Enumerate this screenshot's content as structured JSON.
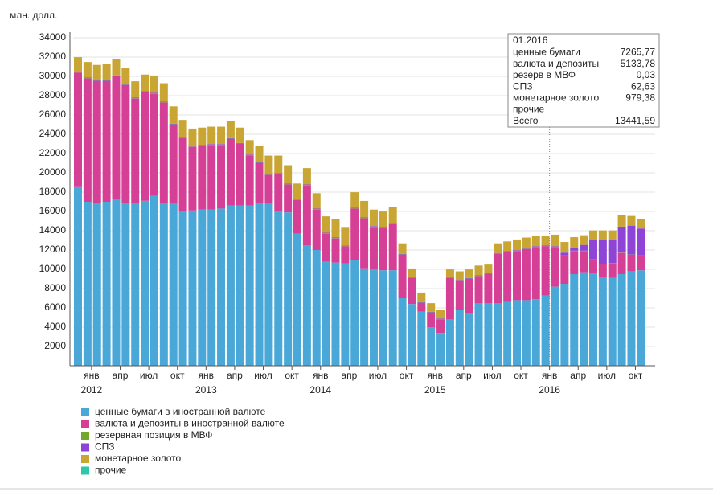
{
  "chart_data": {
    "type": "stacked-bar",
    "y_axis_label": "млн. долл.",
    "ylim": [
      0,
      34500
    ],
    "yticks": [
      2000,
      4000,
      6000,
      8000,
      10000,
      12000,
      14000,
      16000,
      18000,
      20000,
      22000,
      24000,
      26000,
      28000,
      30000,
      32000,
      34000
    ],
    "grid": true,
    "categories": [
      null,
      "янв",
      null,
      null,
      "апр",
      null,
      null,
      "июл",
      null,
      null,
      "окт",
      null,
      null,
      "янв",
      null,
      null,
      "апр",
      null,
      null,
      "июл",
      null,
      null,
      "окт",
      null,
      null,
      "янв",
      null,
      null,
      "апр",
      null,
      null,
      "июл",
      null,
      null,
      "окт",
      null,
      null,
      "янв",
      null,
      null,
      "апр",
      null,
      null,
      "июл",
      null,
      null,
      "окт",
      null,
      null,
      "янв",
      null,
      null,
      "апр",
      null,
      null,
      "июл",
      null,
      null,
      "окт",
      null
    ],
    "year_categories": [
      null,
      "2012",
      null,
      null,
      null,
      null,
      null,
      null,
      null,
      null,
      null,
      null,
      null,
      "2013",
      null,
      null,
      null,
      null,
      null,
      null,
      null,
      null,
      null,
      null,
      null,
      "2014",
      null,
      null,
      null,
      null,
      null,
      null,
      null,
      null,
      null,
      null,
      null,
      "2015",
      null,
      null,
      null,
      null,
      null,
      null,
      null,
      null,
      null,
      null,
      null,
      "2016",
      null,
      null,
      null,
      null,
      null,
      null,
      null,
      null,
      null,
      null
    ],
    "series": [
      {
        "name": "ценные бумаги в иностранной валюте",
        "color": "#4aa8d8",
        "values": [
          18600,
          17000,
          16900,
          17000,
          17300,
          16900,
          16900,
          17100,
          17600,
          16900,
          16800,
          16000,
          16100,
          16200,
          16200,
          16300,
          16600,
          16600,
          16600,
          16900,
          16800,
          16000,
          15900,
          13700,
          12500,
          12000,
          10800,
          10700,
          10600,
          11000,
          10100,
          10000,
          9900,
          9900,
          7000,
          6400,
          5600,
          4000,
          3400,
          4800,
          5800,
          5500,
          6500,
          6500,
          6500,
          6600,
          6800,
          6800,
          6900,
          7265.77,
          8200,
          8500,
          9500,
          9700,
          9600,
          9200,
          9100,
          9500,
          9800,
          9900
        ]
      },
      {
        "name": "валюта и депозиты в иностранной валюте",
        "color": "#d63f96",
        "values": [
          11800,
          12800,
          12600,
          12500,
          12700,
          12200,
          10800,
          11300,
          10600,
          10400,
          8200,
          7600,
          6600,
          6600,
          6700,
          6600,
          6900,
          6400,
          5200,
          4100,
          3000,
          3900,
          2900,
          3500,
          6200,
          4200,
          2900,
          2500,
          1800,
          5300,
          5200,
          4400,
          4400,
          4800,
          4500,
          2700,
          900,
          1500,
          1400,
          4300,
          3000,
          3500,
          2800,
          3000,
          5100,
          5200,
          5100,
          5300,
          5400,
          5133.78,
          4100,
          2900,
          2400,
          2200,
          1400,
          1300,
          1500,
          2200,
          1700,
          1500
        ]
      },
      {
        "name": "резервная позиция в МВФ",
        "color": "#74a82a",
        "values": [
          30,
          30,
          30,
          30,
          30,
          30,
          30,
          30,
          30,
          30,
          30,
          30,
          30,
          30,
          30,
          30,
          30,
          30,
          30,
          30,
          30,
          30,
          30,
          30,
          30,
          30,
          30,
          30,
          30,
          30,
          30,
          30,
          30,
          30,
          30,
          30,
          30,
          30,
          30,
          30,
          30,
          30,
          30,
          30,
          30,
          30,
          30,
          30,
          30,
          0.03,
          30,
          30,
          30,
          30,
          30,
          30,
          30,
          30,
          30,
          30
        ]
      },
      {
        "name": "СПЗ",
        "color": "#8e44d6",
        "values": [
          60,
          60,
          60,
          60,
          60,
          60,
          60,
          60,
          60,
          60,
          60,
          60,
          60,
          60,
          60,
          60,
          60,
          60,
          60,
          60,
          60,
          60,
          60,
          60,
          60,
          60,
          60,
          60,
          60,
          60,
          60,
          60,
          60,
          60,
          60,
          60,
          60,
          60,
          60,
          60,
          60,
          60,
          60,
          60,
          60,
          60,
          60,
          60,
          60,
          62.63,
          60,
          300,
          300,
          600,
          2000,
          2500,
          2400,
          2700,
          3000,
          2800
        ]
      },
      {
        "name": "монетарное золото",
        "color": "#c9a634",
        "values": [
          1500,
          1600,
          1600,
          1700,
          1700,
          1700,
          1700,
          1700,
          1800,
          1900,
          1800,
          1800,
          1800,
          1800,
          1800,
          1800,
          1800,
          1600,
          1500,
          1700,
          1900,
          1800,
          1900,
          1600,
          1700,
          1600,
          1700,
          1900,
          1900,
          1600,
          1700,
          1700,
          1600,
          1700,
          1100,
          900,
          1000,
          900,
          900,
          800,
          900,
          900,
          1000,
          900,
          1000,
          1000,
          1100,
          1100,
          1100,
          979.38,
          1200,
          1100,
          1100,
          1000,
          1000,
          1000,
          1000,
          1200,
          1000,
          1000
        ]
      },
      {
        "name": "прочие",
        "color": "#2ec7a8",
        "values": [
          null,
          null,
          null,
          null,
          null,
          null,
          null,
          null,
          null,
          null,
          null,
          null,
          null,
          null,
          null,
          null,
          null,
          null,
          null,
          null,
          null,
          null,
          null,
          null,
          null,
          null,
          null,
          null,
          null,
          null,
          null,
          null,
          null,
          null,
          null,
          null,
          null,
          null,
          null,
          null,
          null,
          null,
          null,
          null,
          null,
          null,
          null,
          null,
          null,
          null,
          null,
          null,
          null,
          null,
          null,
          null,
          null,
          null,
          null,
          null
        ]
      }
    ],
    "tooltip": {
      "title": "01.2016",
      "index": 49,
      "rows": [
        {
          "label": "ценные бумаги",
          "value": 7265.77,
          "value_label": "7265,77"
        },
        {
          "label": "валюта и депозиты",
          "value": 5133.78,
          "value_label": "5133,78"
        },
        {
          "label": "резерв в МВФ",
          "value": 0.03,
          "value_label": "0,03"
        },
        {
          "label": "СПЗ",
          "value": 62.63,
          "value_label": "62,63"
        },
        {
          "label": "монетарное золото",
          "value": 979.38,
          "value_label": "979,38"
        },
        {
          "label": "прочие"
        },
        {
          "label": "Всего",
          "value": 13441.59,
          "value_label": "13441,59"
        }
      ]
    }
  }
}
